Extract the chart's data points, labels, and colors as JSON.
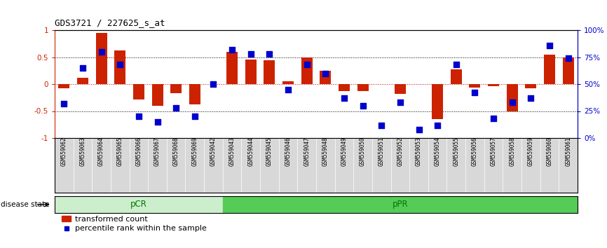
{
  "title": "GDS3721 / 227625_s_at",
  "samples": [
    "GSM559062",
    "GSM559063",
    "GSM559064",
    "GSM559065",
    "GSM559066",
    "GSM559067",
    "GSM559068",
    "GSM559069",
    "GSM559042",
    "GSM559043",
    "GSM559044",
    "GSM559045",
    "GSM559046",
    "GSM559047",
    "GSM559048",
    "GSM559049",
    "GSM559050",
    "GSM559051",
    "GSM559052",
    "GSM559053",
    "GSM559054",
    "GSM559055",
    "GSM559056",
    "GSM559057",
    "GSM559058",
    "GSM559059",
    "GSM559060",
    "GSM559061"
  ],
  "transformed_count": [
    -0.08,
    0.12,
    0.95,
    0.62,
    -0.28,
    -0.4,
    -0.17,
    -0.38,
    0.0,
    0.6,
    0.46,
    0.44,
    0.05,
    0.5,
    0.25,
    -0.13,
    -0.13,
    0.0,
    -0.18,
    0.0,
    -0.65,
    0.27,
    -0.07,
    -0.04,
    -0.5,
    -0.08,
    0.55,
    0.5
  ],
  "percentile_rank": [
    32,
    65,
    80,
    68,
    20,
    15,
    28,
    20,
    50,
    82,
    78,
    78,
    45,
    68,
    60,
    37,
    30,
    12,
    33,
    8,
    12,
    68,
    42,
    18,
    33,
    37,
    86,
    74
  ],
  "pCR_count": 9,
  "pPR_count": 19,
  "bar_color": "#cc2200",
  "dot_color": "#0000cc",
  "pCR_bg": "#cceecc",
  "pPR_bg": "#55cc55",
  "group_text_color": "#007700",
  "y_ticks_left": [
    -1.0,
    -0.5,
    0.0,
    0.5,
    1.0
  ],
  "y_ticks_right": [
    0,
    25,
    50,
    75,
    100
  ],
  "dot_size": 28
}
